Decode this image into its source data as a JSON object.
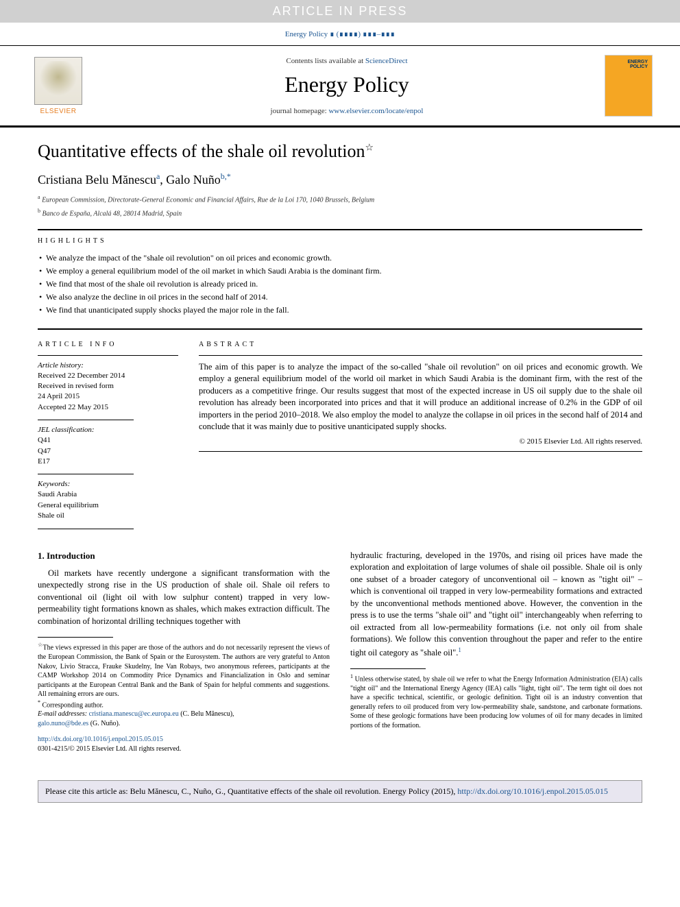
{
  "pressBanner": "ARTICLE IN PRESS",
  "topCitation": "Energy Policy ∎ (∎∎∎∎) ∎∎∎–∎∎∎",
  "header": {
    "contentsPrefix": "Contents lists available at ",
    "contentsLink": "ScienceDirect",
    "journalName": "Energy Policy",
    "homepagePrefix": "journal homepage: ",
    "homepageLink": "www.elsevier.com/locate/enpol",
    "elsevierLabel": "ELSEVIER",
    "coverText": "ENERGY POLICY"
  },
  "title": "Quantitative effects of the shale oil revolution",
  "titleStar": "☆",
  "authors": {
    "a1_name": "Cristiana Belu Mănescu",
    "a1_sup": "a",
    "a2_name": "Galo Nuño",
    "a2_sup": "b,",
    "a2_corr": "*"
  },
  "affiliations": {
    "a": "European Commission, Directorate-General Economic and Financial Affairs, Rue de la Loi 170, 1040 Brussels, Belgium",
    "b": "Banco de España, Alcalá 48, 28014 Madrid, Spain"
  },
  "highlightsLabel": "HIGHLIGHTS",
  "highlights": [
    "We analyze the impact of the \"shale oil revolution\" on oil prices and economic growth.",
    "We employ a general equilibrium model of the oil market in which Saudi Arabia is the dominant firm.",
    "We find that most of the shale oil revolution is already priced in.",
    "We also analyze the decline in oil prices in the second half of 2014.",
    "We find that unanticipated supply shocks played the major role in the fall."
  ],
  "articleInfoLabel": "ARTICLE INFO",
  "abstractLabel": "ABSTRACT",
  "history": {
    "head": "Article history:",
    "received": "Received 22 December 2014",
    "revised1": "Received in revised form",
    "revised2": "24 April 2015",
    "accepted": "Accepted 22 May 2015"
  },
  "jel": {
    "head": "JEL classification:",
    "c1": "Q41",
    "c2": "Q47",
    "c3": "E17"
  },
  "keywords": {
    "head": "Keywords:",
    "k1": "Saudi Arabia",
    "k2": "General equilibrium",
    "k3": "Shale oil"
  },
  "abstract": "The aim of this paper is to analyze the impact of the so-called \"shale oil revolution\" on oil prices and economic growth. We employ a general equilibrium model of the world oil market in which Saudi Arabia is the dominant firm, with the rest of the producers as a competitive fringe. Our results suggest that most of the expected increase in US oil supply due to the shale oil revolution has already been incorporated into prices and that it will produce an additional increase of 0.2% in the GDP of oil importers in the period 2010–2018. We also employ the model to analyze the collapse in oil prices in the second half of 2014 and conclude that it was mainly due to positive unanticipated supply shocks.",
  "copyright": "© 2015 Elsevier Ltd. All rights reserved.",
  "intro": {
    "head": "1. Introduction",
    "p1": "Oil markets have recently undergone a significant transformation with the unexpectedly strong rise in the US production of shale oil. Shale oil refers to conventional oil (light oil with low sulphur content) trapped in very low-permeability tight formations known as shales, which makes extraction difficult. The combination of horizontal drilling techniques together with",
    "p2a": "hydraulic fracturing, developed in the 1970s, and rising oil prices have made the exploration and exploitation of large volumes of shale oil possible. Shale oil is only one subset of a broader category of unconventional oil – known as \"tight oil\" – which is conventional oil trapped in very low-permeability formations and extracted by the unconventional methods mentioned above. However, the convention in the press is to use the terms \"shale oil\" and \"tight oil\" interchangeably when referring to oil extracted from all low-permeability formations (i.e. not only oil from shale formations). We follow this convention throughout the paper and refer to the entire tight oil category as \"shale oil\".",
    "p2_fn": "1"
  },
  "footnotes": {
    "star": "The views expressed in this paper are those of the authors and do not necessarily represent the views of the European Commission, the Bank of Spain or the Eurosystem. The authors are very grateful to Anton Nakov, Livio Stracca, Frauke Skudelny, Ine Van Robays, two anonymous referees, participants at the CAMP Workshop 2014 on Commodity Price Dynamics and Financialization in Oslo and seminar participants at the European Central Bank and the Bank of Spain for helpful comments and suggestions. All remaining errors are ours.",
    "corr_label": "Corresponding author.",
    "email_label": "E-mail addresses: ",
    "email1": "cristiana.manescu@ec.europa.eu",
    "email1_who": " (C. Belu Mănescu),",
    "email2": "galo.nuno@bde.es",
    "email2_who": " (G. Nuño).",
    "fn1": "Unless otherwise stated, by shale oil we refer to what the Energy Information Administration (EIA) calls \"tight oil\" and the International Energy Agency (IEA) calls \"light, tight oil\". The term tight oil does not have a specific technical, scientific, or geologic definition. Tight oil is an industry convention that generally refers to oil produced from very low-permeability shale, sandstone, and carbonate formations. Some of these geologic formations have been producing low volumes of oil for many decades in limited portions of the formation."
  },
  "doi": "http://dx.doi.org/10.1016/j.enpol.2015.05.015",
  "issn": "0301-4215/© 2015 Elsevier Ltd. All rights reserved.",
  "citeBox": {
    "prefix": "Please cite this article as: Belu Mănescu, C., Nuño, G., Quantitative effects of the shale oil revolution. Energy Policy (2015), ",
    "link": "http://dx.doi.org/10.1016/j.enpol.2015.05.015"
  }
}
